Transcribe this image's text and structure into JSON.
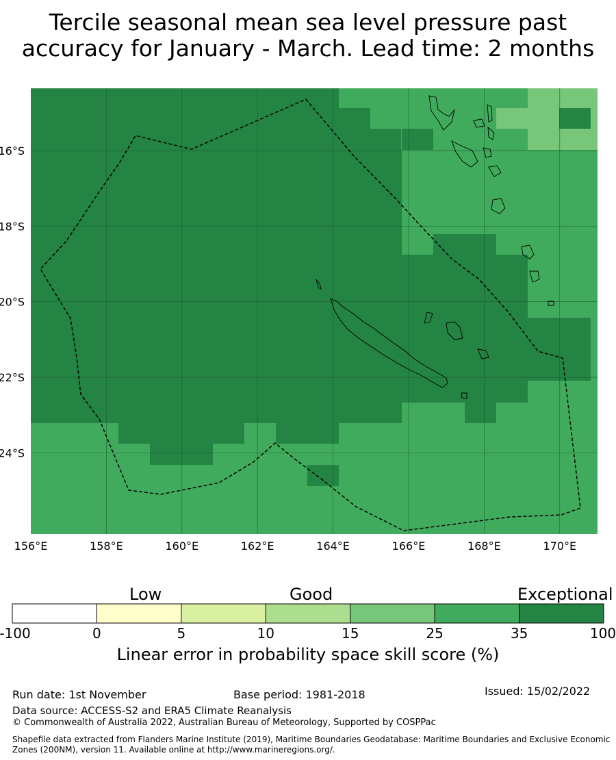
{
  "title": {
    "line1": "Tercile seasonal mean sea level pressure past",
    "line2": "accuracy for January - March. Lead time: 2 months"
  },
  "map": {
    "lon_range": [
      156,
      171
    ],
    "lat_range": [
      -26.15,
      -14.35
    ],
    "x_ticks": [
      "156°E",
      "158°E",
      "160°E",
      "162°E",
      "164°E",
      "166°E",
      "168°E",
      "170°E"
    ],
    "y_ticks": [
      "16°S",
      "18°S",
      "20°S",
      "22°S",
      "24°S"
    ],
    "grid": true,
    "cell_size_deg": 0.833,
    "skill_colors": {
      "band_15_25": "#78c679",
      "band_25_35": "#41ab5d",
      "band_35_100": "#238443"
    }
  },
  "colorbar": {
    "category_labels": [
      "Low",
      "Good",
      "Exceptional"
    ],
    "tick_labels": [
      "-100",
      "0",
      "5",
      "10",
      "15",
      "25",
      "35",
      "100"
    ],
    "colors": [
      "#ffffff",
      "#ffffcc",
      "#d9f0a3",
      "#addd8e",
      "#78c679",
      "#41ab5d",
      "#238443"
    ],
    "title": "Linear error in probability space skill score (%)"
  },
  "footer": {
    "run_date": "Run date: 1st November",
    "base_period": "Base period: 1981-2018",
    "issued": "Issued: 15/02/2022",
    "data_source": "Data source: ACCESS-S2 and ERA5 Climate Reanalysis",
    "copyright": "© Commonwealth of Australia 2022, Australian Bureau of Meteorology, Supported by COSPPac",
    "shapefile_line1": "Shapefile data extracted from Flanders Marine Institute (2019), Maritime Boundaries Geodatabase: Maritime Boundaries and Exclusive Economic",
    "shapefile_line2": "Zones (200NM), version 11. Available online at http://www.marineregions.org/."
  }
}
